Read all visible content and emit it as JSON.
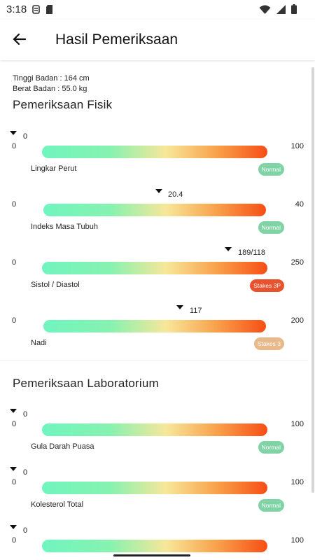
{
  "status_bar": {
    "time": "3:18"
  },
  "app_bar": {
    "title": "Hasil Pemeriksaan"
  },
  "profile": {
    "height": "Tinggi Badan : 164 cm",
    "weight": "Berat Badan : 55.0 kg"
  },
  "sections": [
    {
      "title": "Pemeriksaan Fisik",
      "meters": [
        {
          "name": "Lingkar Perut",
          "min": "0",
          "max": "100",
          "value": "0",
          "level": 0.0,
          "status": "Normal",
          "status_color": "#7fd3a4"
        },
        {
          "name": "Indeks Masa Tubuh",
          "min": "0",
          "max": "40",
          "value": "20.4",
          "level": 0.51,
          "status": "Normal",
          "status_color": "#7fd3a4"
        },
        {
          "name": "Sistol / Diastol",
          "min": "0",
          "max": "250",
          "value": "189/118",
          "level": 0.756,
          "status": "Stakes 3P",
          "status_color": "#e8532e"
        },
        {
          "name": "Nadi",
          "min": "0",
          "max": "200",
          "value": "117",
          "level": 0.585,
          "status": "Stakes 3",
          "status_color": "#e8b98a"
        }
      ]
    },
    {
      "title": "Pemeriksaan Laboratorium",
      "meters": [
        {
          "name": "Gula Darah Puasa",
          "min": "0",
          "max": "100",
          "value": "0",
          "level": 0.0,
          "status": "Normal",
          "status_color": "#7fd3a4"
        },
        {
          "name": "Kolesterol Total",
          "min": "0",
          "max": "100",
          "value": "0",
          "level": 0.0,
          "status": "Normal",
          "status_color": "#7fd3a4"
        },
        {
          "name": "",
          "min": "0",
          "max": "100",
          "value": "0",
          "level": 0.0,
          "status": "",
          "status_color": "#7fd3a4"
        }
      ]
    }
  ]
}
